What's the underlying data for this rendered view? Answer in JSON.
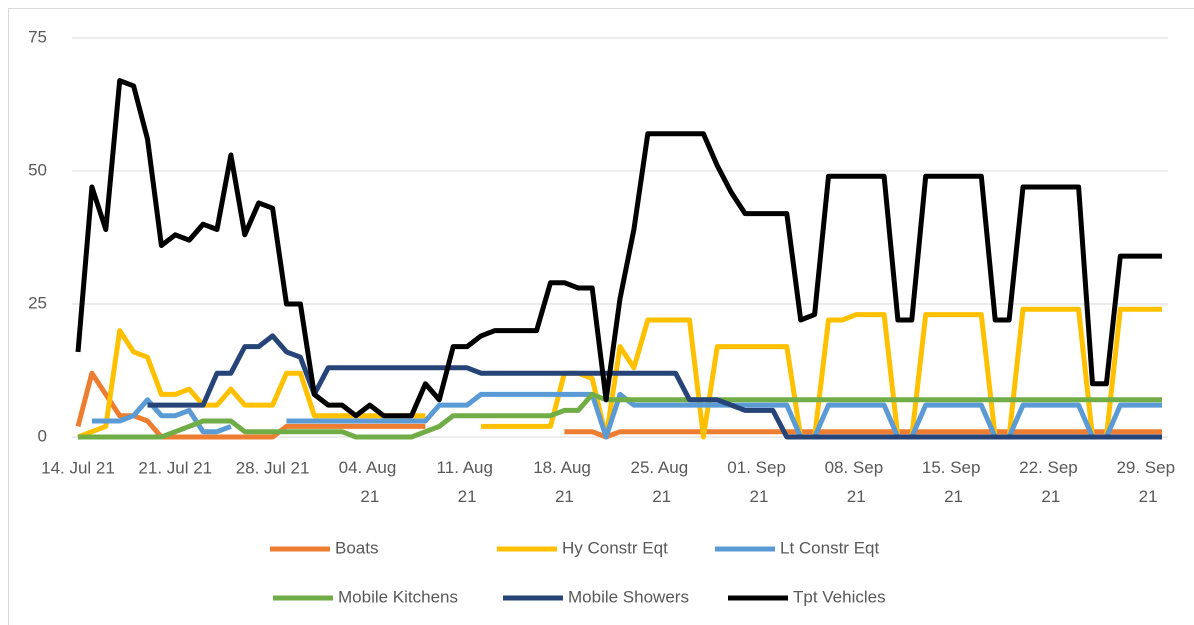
{
  "chart_data": {
    "type": "line",
    "categories": [
      "14. Jul 21",
      null,
      null,
      null,
      null,
      null,
      null,
      "21. Jul 21",
      null,
      null,
      null,
      null,
      null,
      null,
      "28. Jul 21",
      null,
      null,
      null,
      null,
      null,
      null,
      "04. Aug 21",
      null,
      null,
      null,
      null,
      null,
      null,
      "11. Aug 21",
      null,
      null,
      null,
      null,
      null,
      null,
      "18. Aug 21",
      null,
      null,
      null,
      null,
      null,
      null,
      "25. Aug 21",
      null,
      null,
      null,
      null,
      null,
      null,
      "01. Sep 21",
      null,
      null,
      null,
      null,
      null,
      null,
      "08. Sep 21",
      null,
      null,
      null,
      null,
      null,
      null,
      "15. Sep 21",
      null,
      null,
      null,
      null,
      null,
      null,
      "22. Sep 21",
      null,
      null,
      null,
      null,
      null,
      null,
      "29. Sep 21",
      null
    ],
    "ylim": [
      0,
      75
    ],
    "yticks": [
      0,
      25,
      50,
      75
    ],
    "grid": true,
    "legend": "bottom",
    "series": [
      {
        "name": "Boats",
        "color": "#ED7D31",
        "values": [
          2,
          12,
          8,
          4,
          4,
          3,
          0,
          0,
          0,
          0,
          0,
          0,
          0,
          0,
          0,
          2,
          2,
          2,
          2,
          2,
          2,
          2,
          2,
          2,
          2,
          2,
          null,
          null,
          null,
          null,
          null,
          null,
          null,
          null,
          null,
          1,
          1,
          1,
          0,
          1,
          1,
          1,
          1,
          1,
          1,
          1,
          1,
          1,
          1,
          1,
          1,
          1,
          1,
          1,
          1,
          1,
          1,
          1,
          1,
          1,
          1,
          1,
          1,
          1,
          1,
          1,
          1,
          1,
          1,
          1,
          1,
          1,
          1,
          1,
          1,
          1,
          1,
          1,
          1
        ]
      },
      {
        "name": "Hy Constr Eqt",
        "color": "#FFC000",
        "values": [
          0,
          1,
          2,
          20,
          16,
          15,
          8,
          8,
          9,
          6,
          6,
          9,
          6,
          6,
          6,
          12,
          12,
          4,
          4,
          4,
          4,
          4,
          4,
          4,
          4,
          4,
          null,
          null,
          null,
          2,
          2,
          2,
          2,
          2,
          2,
          12,
          12,
          11,
          0,
          17,
          13,
          22,
          22,
          22,
          22,
          0,
          17,
          17,
          17,
          17,
          17,
          17,
          0,
          0,
          22,
          22,
          23,
          23,
          23,
          0,
          0,
          23,
          23,
          23,
          23,
          23,
          0,
          0,
          24,
          24,
          24,
          24,
          24,
          0,
          0,
          24,
          24,
          24,
          24
        ]
      },
      {
        "name": "Lt Constr Eqt",
        "color": "#5B9BD5",
        "values": [
          null,
          3,
          3,
          3,
          4,
          7,
          4,
          4,
          5,
          1,
          1,
          2,
          null,
          null,
          null,
          3,
          3,
          3,
          3,
          3,
          3,
          3,
          3,
          3,
          3,
          3,
          6,
          6,
          6,
          8,
          8,
          8,
          8,
          8,
          8,
          8,
          8,
          8,
          0,
          8,
          6,
          6,
          6,
          6,
          6,
          6,
          6,
          6,
          6,
          6,
          6,
          6,
          0,
          0,
          6,
          6,
          6,
          6,
          6,
          0,
          0,
          6,
          6,
          6,
          6,
          6,
          0,
          0,
          6,
          6,
          6,
          6,
          6,
          0,
          0,
          6,
          6,
          6,
          6
        ]
      },
      {
        "name": "Mobile Kitchens",
        "color": "#70AD47",
        "values": [
          0,
          0,
          0,
          0,
          0,
          0,
          0,
          1,
          2,
          3,
          3,
          3,
          1,
          1,
          1,
          1,
          1,
          1,
          1,
          1,
          0,
          0,
          0,
          0,
          0,
          1,
          2,
          4,
          4,
          4,
          4,
          4,
          4,
          4,
          4,
          5,
          5,
          8,
          7,
          7,
          7,
          7,
          7,
          7,
          7,
          7,
          7,
          7,
          7,
          7,
          7,
          7,
          7,
          7,
          7,
          7,
          7,
          7,
          7,
          7,
          7,
          7,
          7,
          7,
          7,
          7,
          7,
          7,
          7,
          7,
          7,
          7,
          7,
          7,
          7,
          7,
          7,
          7,
          7
        ]
      },
      {
        "name": "Mobile Showers",
        "color": "#264478",
        "values": [
          null,
          null,
          null,
          null,
          null,
          6,
          6,
          6,
          6,
          6,
          12,
          12,
          17,
          17,
          19,
          16,
          15,
          8,
          13,
          13,
          13,
          13,
          13,
          13,
          13,
          13,
          13,
          13,
          13,
          12,
          12,
          12,
          12,
          12,
          12,
          12,
          12,
          12,
          12,
          12,
          12,
          12,
          12,
          12,
          7,
          7,
          7,
          6,
          5,
          5,
          5,
          0,
          0,
          0,
          0,
          0,
          0,
          0,
          0,
          0,
          0,
          0,
          0,
          0,
          0,
          0,
          0,
          0,
          0,
          0,
          0,
          0,
          0,
          0,
          0,
          0,
          0,
          0,
          0
        ]
      },
      {
        "name": "Tpt Vehicles",
        "color": "#000000",
        "values": [
          16,
          47,
          39,
          67,
          66,
          56,
          36,
          38,
          37,
          40,
          39,
          53,
          38,
          44,
          43,
          25,
          25,
          8,
          6,
          6,
          4,
          6,
          4,
          4,
          4,
          10,
          7,
          17,
          17,
          19,
          20,
          20,
          20,
          20,
          29,
          29,
          28,
          28,
          7,
          26,
          39,
          57,
          57,
          57,
          57,
          57,
          51,
          46,
          42,
          42,
          42,
          42,
          22,
          23,
          49,
          49,
          49,
          49,
          49,
          22,
          22,
          49,
          49,
          49,
          49,
          49,
          22,
          22,
          47,
          47,
          47,
          47,
          47,
          10,
          10,
          34,
          34,
          34,
          34
        ]
      }
    ]
  }
}
